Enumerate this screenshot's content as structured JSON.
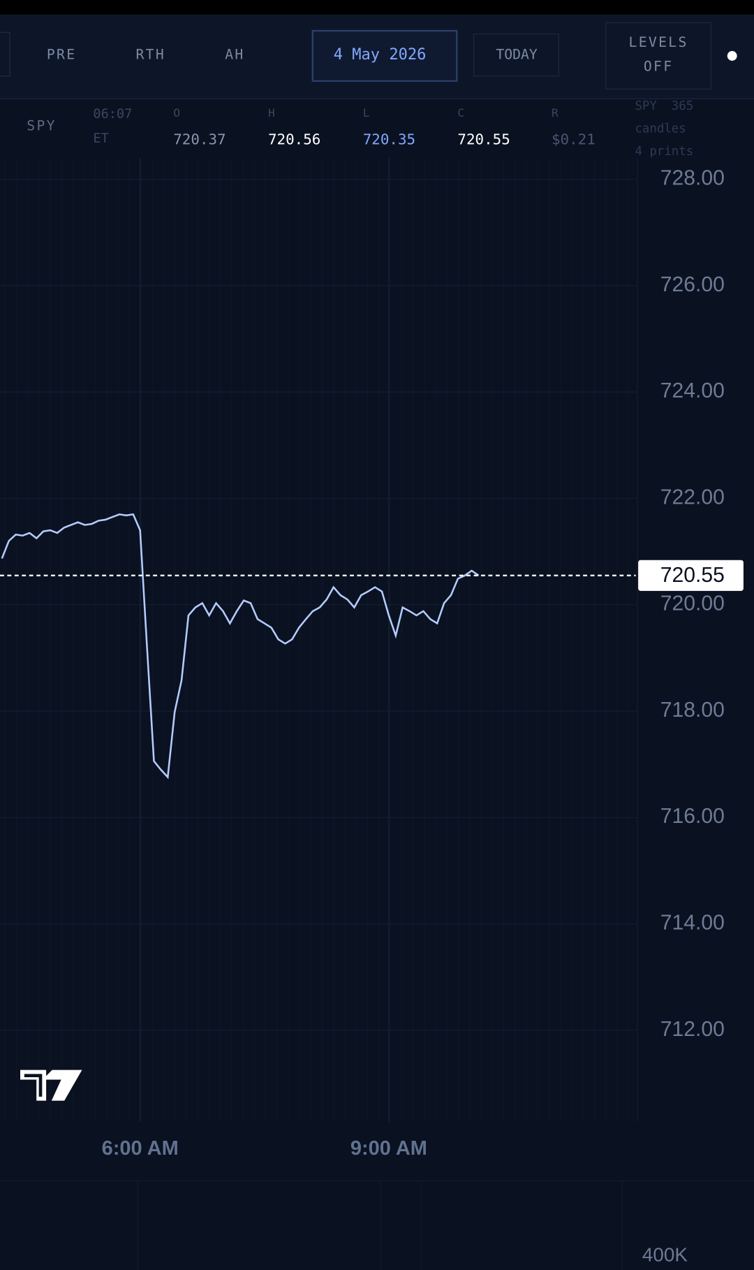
{
  "toolbar": {
    "buttons": [
      "PRE",
      "RTH",
      "AH"
    ],
    "date": "4 May 2026",
    "today": "TODAY",
    "levels": [
      "LEVELS",
      "OFF"
    ]
  },
  "readout": {
    "symbol": "SPY",
    "time": "06:07",
    "zone": "ET",
    "fields": [
      {
        "key": "O",
        "value": 720.37
      },
      {
        "key": "H",
        "value": 720.56
      },
      {
        "key": "L",
        "value": 720.35
      },
      {
        "key": "C",
        "value": 720.55
      },
      {
        "key": "R",
        "value": "$0.21"
      }
    ],
    "summary": [
      "SPY  365",
      "candles",
      "4 prints"
    ]
  },
  "chart_data": {
    "type": "line",
    "color": "#b4ccff",
    "categories": [
      null,
      null,
      null,
      null,
      null,
      null,
      null,
      null,
      null,
      null,
      null,
      null,
      null,
      null,
      null,
      null,
      null,
      null,
      null,
      null,
      "6:00 AM",
      null,
      null,
      null,
      null,
      null,
      null,
      null,
      null,
      null,
      null,
      null,
      null,
      null,
      null,
      null,
      null,
      null,
      null,
      null,
      null,
      null,
      null,
      null,
      null,
      null,
      null,
      null,
      null,
      null,
      null,
      null,
      null,
      null,
      null,
      null,
      "9:00 AM",
      null,
      null,
      null,
      null,
      null,
      null,
      null,
      null,
      null,
      null,
      null,
      null,
      null
    ],
    "values": [
      720.87,
      721.2,
      721.32,
      721.3,
      721.35,
      721.25,
      721.38,
      721.4,
      721.35,
      721.45,
      721.5,
      721.55,
      721.5,
      721.52,
      721.58,
      721.6,
      721.65,
      721.7,
      721.68,
      721.7,
      721.4,
      719.2,
      717.06,
      716.9,
      716.76,
      717.98,
      718.58,
      719.8,
      719.95,
      720.03,
      719.8,
      720.03,
      719.88,
      719.65,
      719.88,
      720.08,
      720.03,
      719.73,
      719.65,
      719.57,
      719.35,
      719.27,
      719.35,
      719.57,
      719.73,
      719.88,
      719.95,
      720.1,
      720.33,
      720.18,
      720.1,
      719.95,
      720.18,
      720.25,
      720.33,
      720.25,
      719.8,
      719.42,
      719.95,
      719.88,
      719.8,
      719.88,
      719.73,
      719.65,
      720.03,
      720.18,
      720.49,
      720.55,
      720.64,
      720.55
    ],
    "ylim": [
      710.28,
      728.4
    ],
    "yticks": [
      {
        "value": 712,
        "label": "712.00"
      },
      {
        "value": 714,
        "label": "714.00"
      },
      {
        "value": 716,
        "label": "716.00"
      },
      {
        "value": 718,
        "label": "718.00"
      },
      {
        "value": 720,
        "label": "720.00"
      },
      {
        "value": 722,
        "label": "722.00"
      },
      {
        "value": 724,
        "label": "724.00"
      },
      {
        "value": 726,
        "label": "726.00"
      },
      {
        "value": 728,
        "label": "728.00"
      }
    ],
    "grid": true,
    "last_price": 720.55
  },
  "volume_pane": {
    "yticks": [
      {
        "value": 400000,
        "label": "400K"
      }
    ]
  }
}
